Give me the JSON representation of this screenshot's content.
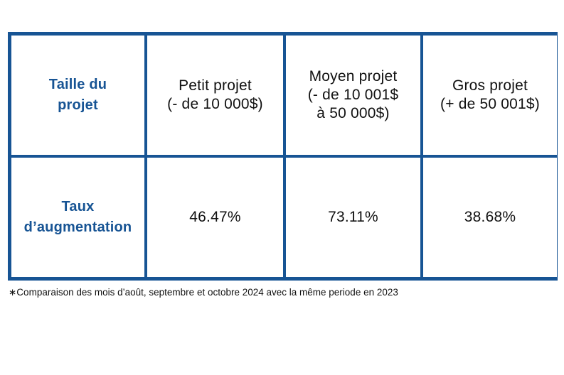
{
  "table": {
    "row_header_1": [
      "Taille du",
      "projet"
    ],
    "columns": [
      [
        "Petit projet",
        "(- de 10 000$)"
      ],
      [
        "Moyen projet",
        "(- de 10 001$",
        "à 50 000$)"
      ],
      [
        "Gros projet",
        "(+ de 50 001$)"
      ]
    ],
    "row_header_2": [
      "Taux",
      "d’augmentation"
    ],
    "values": [
      "46.47%",
      "73.11%",
      "38.68%"
    ]
  },
  "footnote": "∗Comparaison des mois d’août, septembre et octobre 2024 avec la même periode en 2023"
}
